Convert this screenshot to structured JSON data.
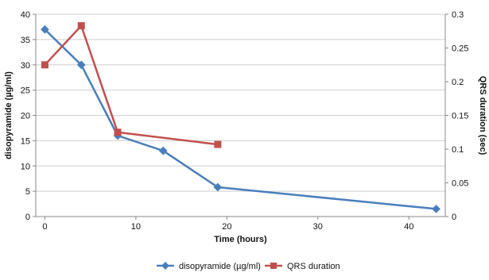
{
  "chart_data": {
    "type": "line",
    "xlabel": "Time (hours)",
    "ylabel": "disopyramide (µg/ml)",
    "y2label": "QRS duration (sec)",
    "xlim": [
      -1,
      44
    ],
    "ylim": [
      0,
      40
    ],
    "y2lim": [
      0,
      0.3
    ],
    "x_ticks": [
      0,
      10,
      20,
      30,
      40
    ],
    "y_ticks": [
      0,
      5,
      10,
      15,
      20,
      25,
      30,
      35,
      40
    ],
    "y2_ticks": [
      0,
      0.05,
      0.1,
      0.15,
      0.2,
      0.25,
      0.3
    ],
    "grid": true,
    "legend_position": "bottom",
    "series": [
      {
        "name": "disopyramide (µg/ml)",
        "axis": "left",
        "color": "#4a7ebb",
        "marker": "diamond",
        "x": [
          0,
          4,
          8,
          13,
          19,
          43
        ],
        "y": [
          37,
          30,
          16,
          13,
          5.8,
          1.5
        ]
      },
      {
        "name": "QRS duration",
        "axis": "right",
        "color": "#c0504d",
        "marker": "square",
        "x": [
          0,
          4,
          8,
          19
        ],
        "y": [
          0.225,
          0.283,
          0.125,
          0.107
        ]
      }
    ]
  }
}
